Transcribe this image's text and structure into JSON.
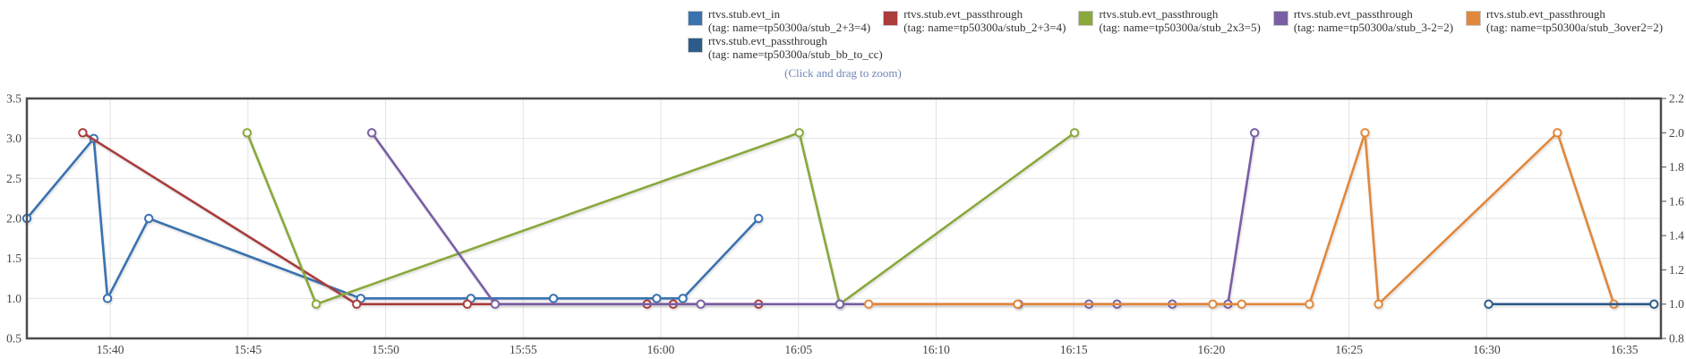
{
  "hint": "(Click and drag to zoom)",
  "chart_data": {
    "type": "line",
    "title": "",
    "x_unit": "minutes since 15:40",
    "x_axis": {
      "min": -3.03,
      "max": 56.33,
      "ticks": [
        {
          "m": 0,
          "label": "15:40"
        },
        {
          "m": 5,
          "label": "15:45"
        },
        {
          "m": 10,
          "label": "15:50"
        },
        {
          "m": 15,
          "label": "15:55"
        },
        {
          "m": 20,
          "label": "16:00"
        },
        {
          "m": 25,
          "label": "16:05"
        },
        {
          "m": 30,
          "label": "16:10"
        },
        {
          "m": 35,
          "label": "16:15"
        },
        {
          "m": 40,
          "label": "16:20"
        },
        {
          "m": 45,
          "label": "16:25"
        },
        {
          "m": 50,
          "label": "16:30"
        },
        {
          "m": 55,
          "label": "16:35"
        }
      ]
    },
    "y_left": {
      "min": 0.5,
      "max": 3.5,
      "tick_labels": [
        "3.5",
        "3.0",
        "2.5",
        "2.0",
        "1.5",
        "1.0",
        "0.5"
      ],
      "tick_values": [
        3.5,
        3.0,
        2.5,
        2.0,
        1.5,
        1.0,
        0.5
      ]
    },
    "y_right": {
      "min": 0.8,
      "max": 2.2,
      "tick_labels": [
        "2.2",
        "2.0",
        "1.8",
        "1.6",
        "1.4",
        "1.2",
        "1.0",
        "0.8"
      ],
      "tick_values": [
        2.2,
        2.0,
        1.8,
        1.6,
        1.4,
        1.2,
        1.0,
        0.8
      ]
    },
    "grid": true,
    "legend_position": "top-center",
    "series": [
      {
        "name": "rtvs.stub.evt_in",
        "tag": "(tag: name=tp50300a/stub_2+3=4)",
        "color": "#3a72b0",
        "axis": "left",
        "points": [
          [
            -3.03,
            2
          ],
          [
            -0.6,
            3
          ],
          [
            -0.1,
            1
          ],
          [
            1.4,
            2
          ],
          [
            9.1,
            1
          ],
          [
            13.1,
            1
          ],
          [
            16.1,
            1
          ],
          [
            19.85,
            1
          ],
          [
            20.8,
            1
          ],
          [
            23.55,
            2
          ]
        ]
      },
      {
        "name": "rtvs.stub.evt_passthrough",
        "tag": "(tag: name=tp50300a/stub_2+3=4)",
        "color": "#aa3c3c",
        "axis": "right",
        "points": [
          [
            -1.0,
            2
          ],
          [
            8.95,
            1
          ],
          [
            12.97,
            1
          ],
          [
            19.5,
            1
          ],
          [
            20.45,
            1
          ],
          [
            23.55,
            1
          ]
        ]
      },
      {
        "name": "rtvs.stub.evt_passthrough",
        "tag": "(tag: name=tp50300a/stub_2x3=5)",
        "color": "#8aa83c",
        "axis": "right",
        "points": [
          [
            4.97,
            2
          ],
          [
            7.48,
            1
          ],
          [
            25.03,
            2
          ],
          [
            26.5,
            1
          ],
          [
            35.03,
            2
          ]
        ]
      },
      {
        "name": "rtvs.stub.evt_passthrough",
        "tag": "(tag: name=tp50300a/stub_3-2=2)",
        "color": "#7a5fa5",
        "axis": "right",
        "points": [
          [
            9.5,
            2
          ],
          [
            13.98,
            1
          ],
          [
            21.45,
            1
          ],
          [
            26.5,
            1
          ],
          [
            33.0,
            1
          ],
          [
            35.55,
            1
          ],
          [
            36.57,
            1
          ],
          [
            38.58,
            1
          ],
          [
            40.6,
            1
          ],
          [
            41.57,
            2
          ]
        ]
      },
      {
        "name": "rtvs.stub.evt_passthrough",
        "tag": "(tag: name=tp50300a/stub_3over2=2)",
        "color": "#e1883c",
        "axis": "right",
        "points": [
          [
            27.55,
            1
          ],
          [
            32.96,
            1
          ],
          [
            40.05,
            1
          ],
          [
            41.1,
            1
          ],
          [
            43.56,
            1
          ],
          [
            45.58,
            2
          ],
          [
            46.07,
            1
          ],
          [
            52.57,
            2
          ],
          [
            54.62,
            1
          ]
        ]
      },
      {
        "name": "rtvs.stub.evt_passthrough",
        "tag": "(tag: name=tp50300a/stub_bb_to_cc)",
        "color": "#2e5c8a",
        "axis": "right",
        "points": [
          [
            50.07,
            1
          ],
          [
            56.08,
            1
          ]
        ]
      }
    ],
    "legend_rows": [
      [
        0,
        1,
        2,
        3,
        4
      ],
      [
        5
      ]
    ]
  }
}
